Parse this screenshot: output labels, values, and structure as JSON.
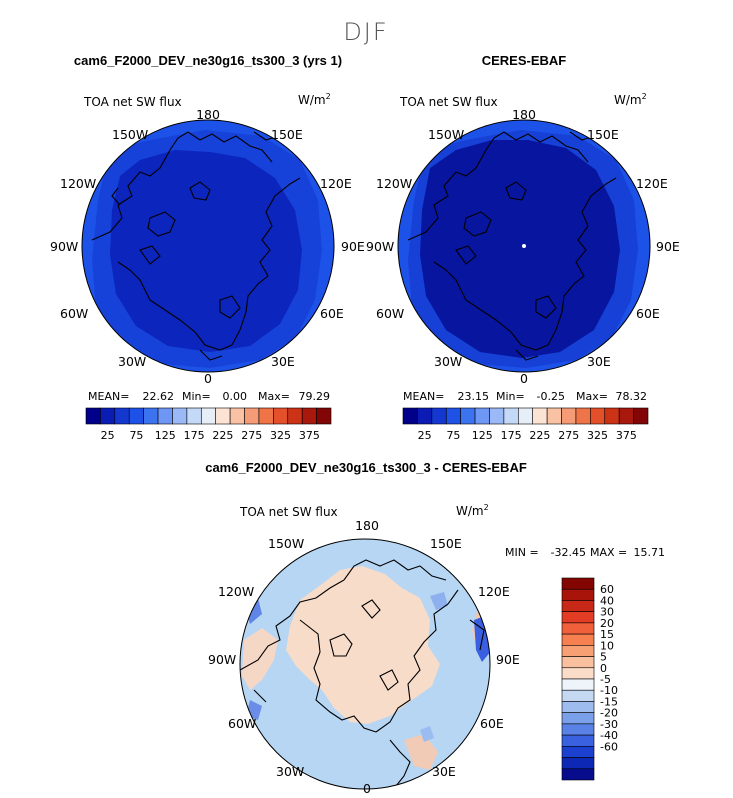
{
  "figure": {
    "season": "DJF",
    "colors": {
      "lowest_blue": "#06069e",
      "dark_blue": "#0d26c4",
      "mid_blue": "#1b4fe6",
      "light_blue_bg": "#aed2f3",
      "pale_orange": "#f8d8c6",
      "coast": "#000000"
    }
  },
  "panels": [
    {
      "title": "cam6_F2000_DEV_ne30g16_ts300_3 (yrs 1)",
      "variable": "TOA net SW flux",
      "units": "W/m",
      "units_exp": "2",
      "lon_labels": [
        "180",
        "150W",
        "150E",
        "120W",
        "120E",
        "90W",
        "90E",
        "60W",
        "60E",
        "30W",
        "30E",
        "0"
      ],
      "stats": {
        "mean_label": "MEAN=",
        "mean": "22.62",
        "min_label": "Min=",
        "min": "0.00",
        "max_label": "Max=",
        "max": "79.29"
      }
    },
    {
      "title": "CERES-EBAF",
      "variable": "TOA net SW flux",
      "units": "W/m",
      "units_exp": "2",
      "lon_labels": [
        "180",
        "150W",
        "150E",
        "120W",
        "120E",
        "90W",
        "90E",
        "60W",
        "60E",
        "30W",
        "30E",
        "0"
      ],
      "stats": {
        "mean_label": "MEAN=",
        "mean": "23.15",
        "min_label": "Min=",
        "min": "-0.25",
        "max_label": "Max=",
        "max": "78.32"
      }
    }
  ],
  "abs_colorbar": {
    "colors": [
      "#00008a",
      "#0a1cb4",
      "#1437d0",
      "#1e52e6",
      "#3c73f0",
      "#6e96f4",
      "#9ab9f6",
      "#c4d8f8",
      "#e6eef8",
      "#fde3d4",
      "#f9c2a4",
      "#f59c76",
      "#ef7448",
      "#e4502a",
      "#cc3216",
      "#a8180c",
      "#820606"
    ],
    "tick_labels": [
      "25",
      "75",
      "125",
      "175",
      "225",
      "275",
      "325",
      "375"
    ]
  },
  "diff_panel": {
    "title": "cam6_F2000_DEV_ne30g16_ts300_3 - CERES-EBAF",
    "variable": "TOA net SW flux",
    "units": "W/m",
    "units_exp": "2",
    "lon_labels": [
      "180",
      "150W",
      "150E",
      "120W",
      "120E",
      "90W",
      "90E",
      "60W",
      "60E",
      "30W",
      "30E",
      "0"
    ],
    "minmax": {
      "min_label": "MIN =",
      "min": "-32.45",
      "max_label": "MAX =",
      "max": "15.71"
    }
  },
  "diff_colorbar": {
    "colors": [
      "#830603",
      "#a8140a",
      "#c82818",
      "#e23c24",
      "#f0603a",
      "#f68050",
      "#f7a074",
      "#f9c0a0",
      "#fbdcc8",
      "#eef4fa",
      "#c4d8f2",
      "#9ebdee",
      "#7aa0ea",
      "#5a82e6",
      "#3a62e0",
      "#1c40d0",
      "#0c28b4",
      "#060c8c"
    ],
    "tick_labels": [
      "60",
      "40",
      "30",
      "20",
      "15",
      "10",
      "5",
      "0",
      "-5",
      "-10",
      "-15",
      "-20",
      "-30",
      "-40",
      "-60"
    ]
  }
}
